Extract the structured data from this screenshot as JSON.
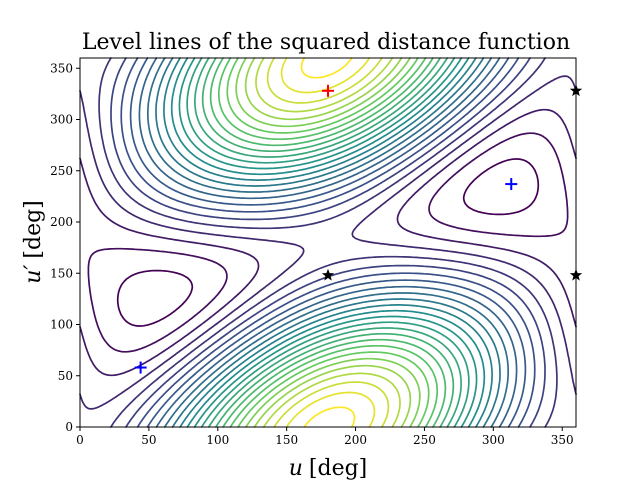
{
  "chart_data": {
    "type": "contour",
    "title": "Level lines of the squared distance function",
    "xlabel_main": "u",
    "xlabel_unit": "[deg]",
    "ylabel_main": "u′",
    "ylabel_unit": "[deg]",
    "xlim": [
      0,
      360
    ],
    "ylim": [
      0,
      360
    ],
    "xticks": [
      0,
      50,
      100,
      150,
      200,
      250,
      300,
      350
    ],
    "yticks": [
      0,
      50,
      100,
      150,
      200,
      250,
      300,
      350
    ],
    "grid": false,
    "colormap": [
      "#440154",
      "#3b528b",
      "#21918c",
      "#5ec962",
      "#fde725"
    ],
    "function": "squared distance between points on two offset circles",
    "circle_offset": 1.2,
    "contour_levels": 26,
    "markers": [
      {
        "kind": "max",
        "x": 180,
        "y": 328,
        "symbol": "+",
        "color": "#ff0000"
      },
      {
        "kind": "min",
        "x": 44,
        "y": 58,
        "symbol": "+",
        "color": "#0000ff"
      },
      {
        "kind": "min",
        "x": 313,
        "y": 237,
        "symbol": "+",
        "color": "#0000ff"
      },
      {
        "kind": "saddle",
        "x": 180,
        "y": 148,
        "symbol": "★",
        "color": "#000000"
      },
      {
        "kind": "saddle",
        "x": 360,
        "y": 148,
        "symbol": "★",
        "color": "#000000"
      },
      {
        "kind": "saddle",
        "x": 360,
        "y": 328,
        "symbol": "★",
        "color": "#000000"
      }
    ]
  }
}
